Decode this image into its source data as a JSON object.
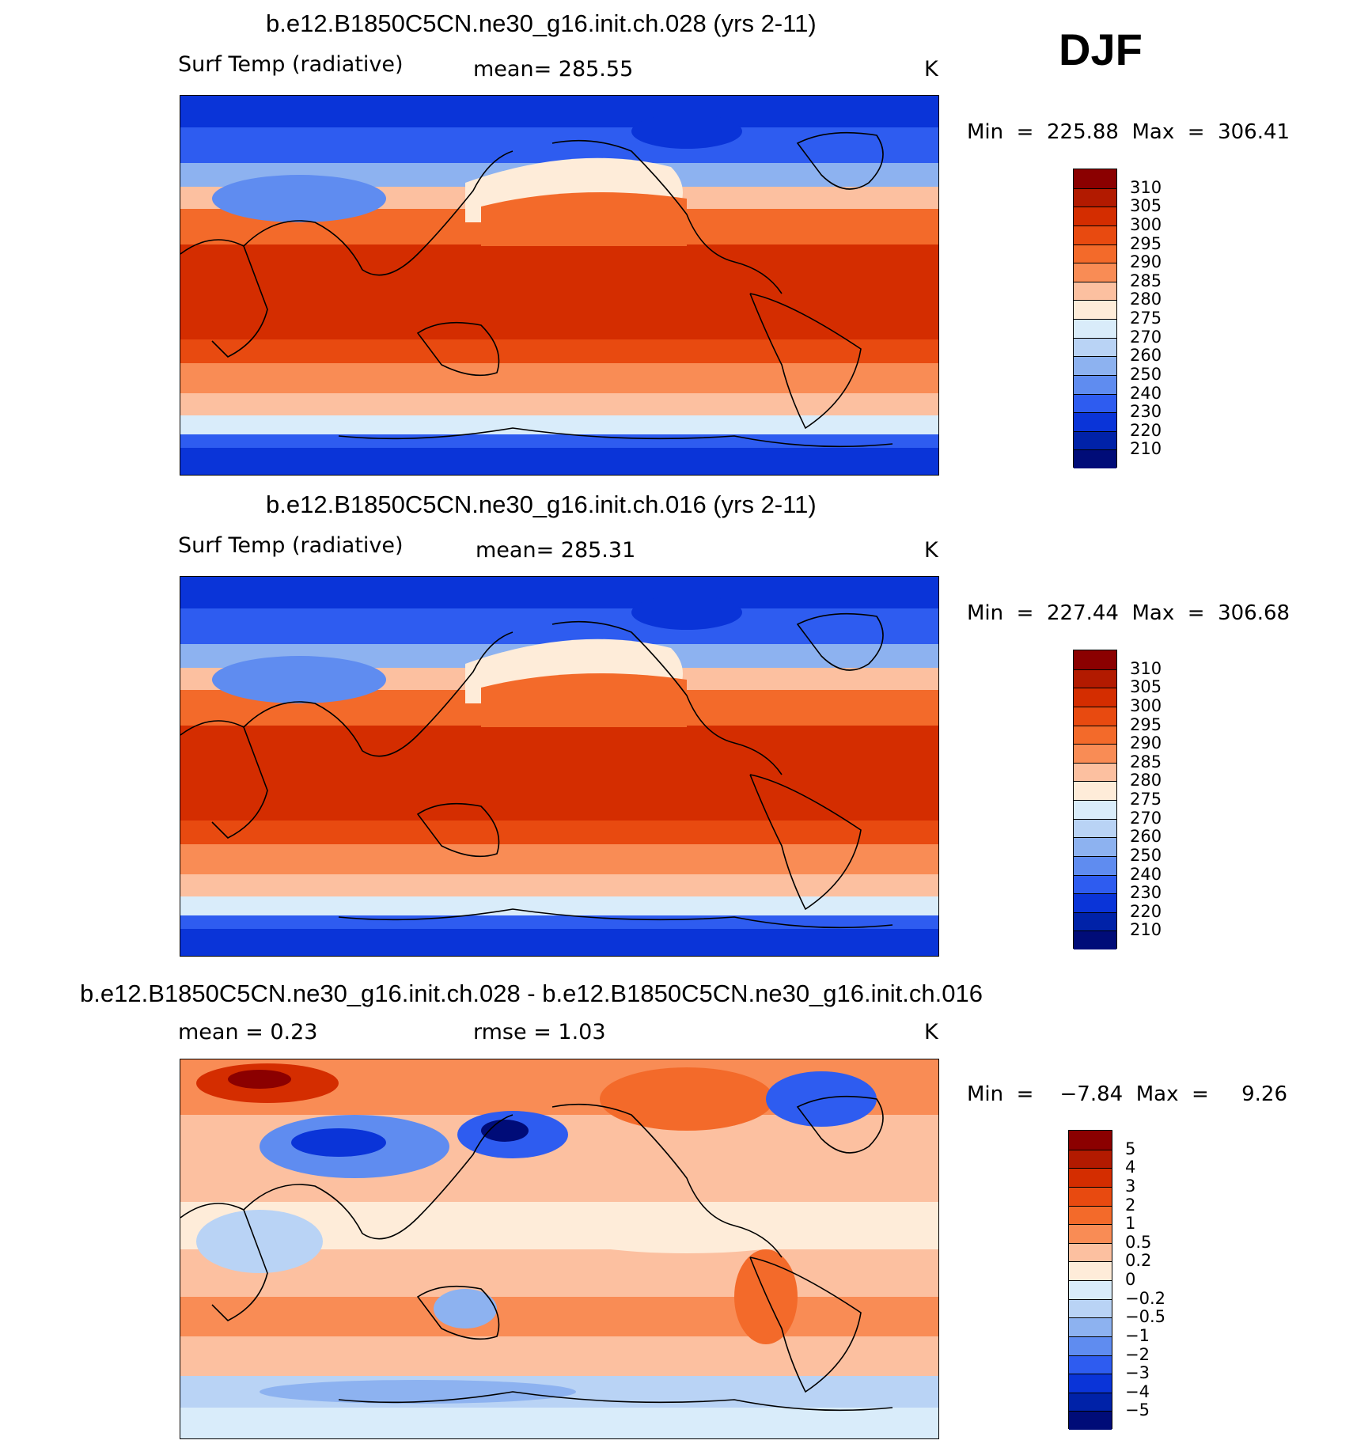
{
  "season": "DJF",
  "panels": [
    {
      "title": "b.e12.B1850C5CN.ne30_g16.init.ch.028 (yrs 2-11)",
      "variable": "Surf Temp (radiative)",
      "stat": "mean=  285.55",
      "units": "K",
      "minmax": "Min  =  225.88  Max  =  306.41",
      "colorbar_labels": [
        "310",
        "305",
        "300",
        "295",
        "290",
        "285",
        "280",
        "275",
        "270",
        "260",
        "250",
        "240",
        "230",
        "220",
        "210"
      ]
    },
    {
      "title": "b.e12.B1850C5CN.ne30_g16.init.ch.016 (yrs 2-11)",
      "variable": "Surf Temp (radiative)",
      "stat": "mean=  285.31",
      "units": "K",
      "minmax": "Min  =  227.44  Max  =  306.68",
      "colorbar_labels": [
        "310",
        "305",
        "300",
        "295",
        "290",
        "285",
        "280",
        "275",
        "270",
        "260",
        "250",
        "240",
        "230",
        "220",
        "210"
      ]
    },
    {
      "title": "b.e12.B1850C5CN.ne30_g16.init.ch.028 - b.e12.B1850C5CN.ne30_g16.init.ch.016",
      "variable": "mean  =     0.23",
      "stat": "rmse  =     1.03",
      "units": "K",
      "minmax": "Min  =    −7.84  Max  =     9.26",
      "colorbar_labels": [
        "5",
        "4",
        "3",
        "2",
        "1",
        "0.5",
        "0.2",
        "0",
        "−0.2",
        "−0.5",
        "−1",
        "−2",
        "−3",
        "−4",
        "−5"
      ]
    }
  ],
  "colors": {
    "temp_scale": [
      "#8b0000",
      "#b21a00",
      "#d42d00",
      "#e84a10",
      "#f36a2a",
      "#f98c55",
      "#fcc0a0",
      "#feecd9",
      "#d9ecfa",
      "#b9d3f5",
      "#8db2f0",
      "#5f8cf0",
      "#2e5cf0",
      "#0a34d8",
      "#0022a8",
      "#000c78"
    ],
    "diff_scale": [
      "#8b0000",
      "#b21a00",
      "#d42d00",
      "#e84a10",
      "#f36a2a",
      "#f98c55",
      "#fcc0a0",
      "#feecd9",
      "#d9ecfa",
      "#b9d3f5",
      "#8db2f0",
      "#5f8cf0",
      "#2e5cf0",
      "#0a34d8",
      "#0022a8",
      "#000c78"
    ]
  }
}
